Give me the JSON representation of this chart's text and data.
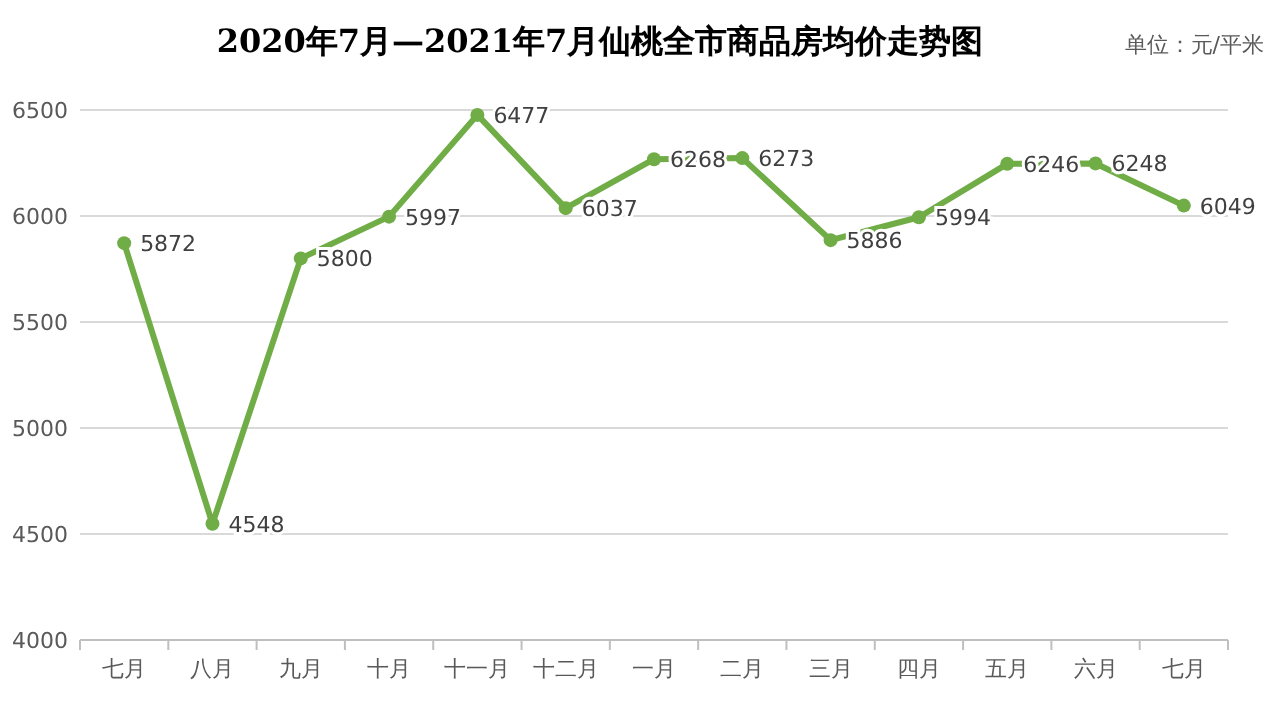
{
  "chart_data": {
    "type": "line",
    "title": "2020年7月—2021年7月仙桃全市商品房均价走势图",
    "annotations": [
      "单位：元/平米"
    ],
    "categories": [
      "七月",
      "八月",
      "九月",
      "十月",
      "十一月",
      "十二月",
      "一月",
      "二月",
      "三月",
      "四月",
      "五月",
      "六月",
      "七月"
    ],
    "series": [
      {
        "color": "#70ad47",
        "values": [
          5872,
          4548,
          5800,
          5997,
          6477,
          6037,
          6268,
          6273,
          5886,
          5994,
          6246,
          6248,
          6049
        ]
      }
    ],
    "ylim": [
      4000,
      6500
    ],
    "yticks": [
      4000,
      4500,
      5000,
      5500,
      6000,
      6500
    ],
    "grid": "y",
    "marker": "circle",
    "line_style": "solid",
    "data_labels": true
  }
}
